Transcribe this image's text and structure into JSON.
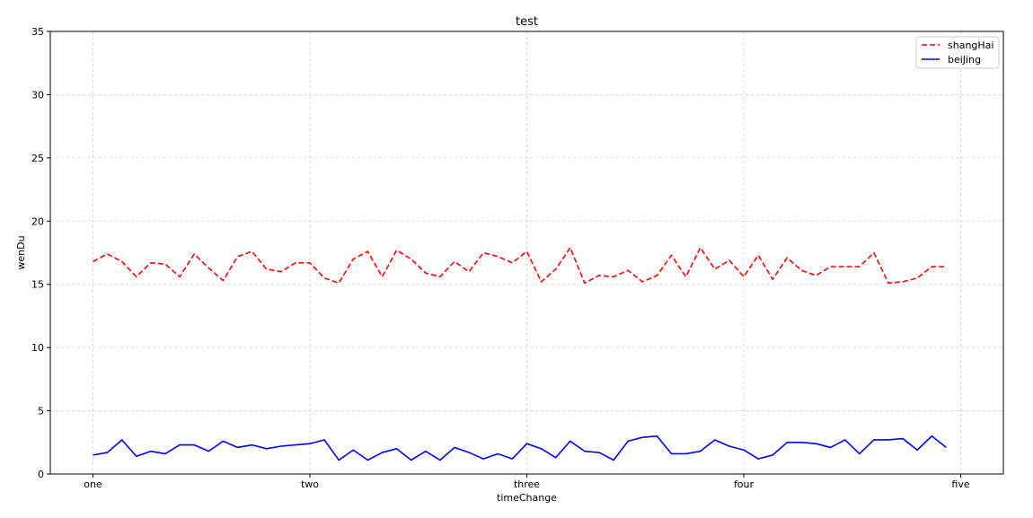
{
  "chart_data": {
    "type": "line",
    "title": "test",
    "xlabel": "timeChange",
    "ylabel": "wenDu",
    "xlim": [
      -2.95,
      62.95
    ],
    "ylim": [
      0,
      35
    ],
    "xticks": [
      {
        "pos": 0,
        "label": "one"
      },
      {
        "pos": 15,
        "label": "two"
      },
      {
        "pos": 30,
        "label": "three"
      },
      {
        "pos": 45,
        "label": "four"
      },
      {
        "pos": 60,
        "label": "five"
      }
    ],
    "yticks": [
      0,
      5,
      10,
      15,
      20,
      25,
      30,
      35
    ],
    "grid": true,
    "legend_position": "upper right",
    "series": [
      {
        "name": "shangHai",
        "color": "#ff0000",
        "style": "dashed",
        "x": [
          0,
          1,
          2,
          3,
          4,
          5,
          6,
          7,
          8,
          9,
          10,
          11,
          12,
          13,
          14,
          15,
          16,
          17,
          18,
          19,
          20,
          21,
          22,
          23,
          24,
          25,
          26,
          27,
          28,
          29,
          30,
          31,
          32,
          33,
          34,
          35,
          36,
          37,
          38,
          39,
          40,
          41,
          42,
          43,
          44,
          45,
          46,
          47,
          48,
          49,
          50,
          51,
          52,
          53,
          54,
          55,
          56,
          57,
          58,
          59
        ],
        "values": [
          16.8,
          17.4,
          16.8,
          15.6,
          16.7,
          16.6,
          15.6,
          17.4,
          16.3,
          15.3,
          17.2,
          17.6,
          16.2,
          16.0,
          16.7,
          16.7,
          15.5,
          15.1,
          17.0,
          17.6,
          15.6,
          17.7,
          17.0,
          15.9,
          15.6,
          16.8,
          16.0,
          17.5,
          17.2,
          16.7,
          17.6,
          15.2,
          16.2,
          17.9,
          15.1,
          15.7,
          15.6,
          16.1,
          15.2,
          15.7,
          17.3,
          15.6,
          17.9,
          16.2,
          16.9,
          15.6,
          17.3,
          15.4,
          17.1,
          16.1,
          15.7,
          16.4,
          16.4,
          16.4,
          17.5,
          15.1,
          15.2,
          15.5,
          16.4,
          16.4
        ]
      },
      {
        "name": "beiJing",
        "color": "#0000ff",
        "style": "solid",
        "x": [
          0,
          1,
          2,
          3,
          4,
          5,
          6,
          7,
          8,
          9,
          10,
          11,
          12,
          13,
          14,
          15,
          16,
          17,
          18,
          19,
          20,
          21,
          22,
          23,
          24,
          25,
          26,
          27,
          28,
          29,
          30,
          31,
          32,
          33,
          34,
          35,
          36,
          37,
          38,
          39,
          40,
          41,
          42,
          43,
          44,
          45,
          46,
          47,
          48,
          49,
          50,
          51,
          52,
          53,
          54,
          55,
          56,
          57,
          58,
          59
        ],
        "values": [
          1.5,
          1.7,
          2.7,
          1.4,
          1.8,
          1.6,
          2.3,
          2.3,
          1.8,
          2.6,
          2.1,
          2.3,
          2.0,
          2.2,
          2.3,
          2.4,
          2.7,
          1.1,
          1.9,
          1.1,
          1.7,
          2.0,
          1.1,
          1.8,
          1.1,
          2.1,
          1.7,
          1.2,
          1.6,
          1.2,
          2.4,
          2.0,
          1.3,
          2.6,
          1.8,
          1.7,
          1.1,
          2.6,
          2.9,
          3.0,
          1.6,
          1.6,
          1.8,
          2.7,
          2.2,
          1.9,
          1.2,
          1.5,
          2.5,
          2.5,
          2.4,
          2.1,
          2.7,
          1.6,
          2.7,
          2.7,
          2.8,
          1.9,
          3.0,
          2.1
        ]
      }
    ]
  }
}
